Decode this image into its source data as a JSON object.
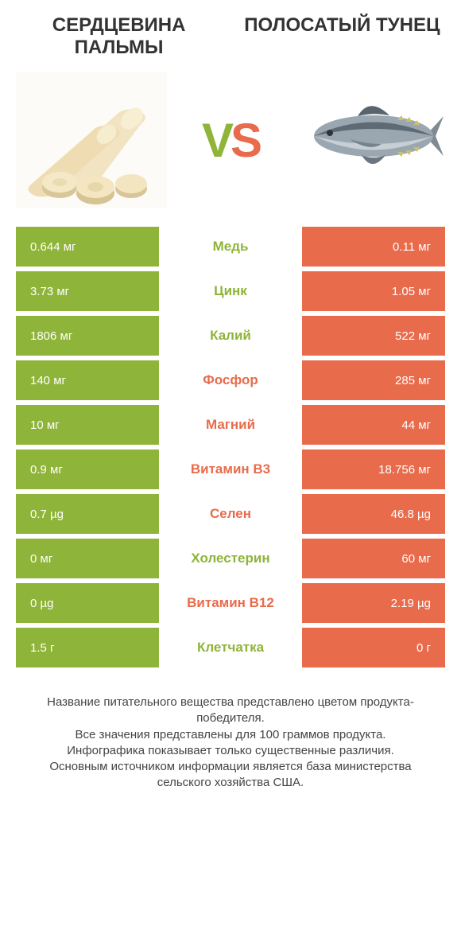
{
  "titles": {
    "left": "СЕРДЦЕВИНА ПАЛЬМЫ",
    "right": "ПОЛОСАТЫЙ ТУНЕЦ"
  },
  "vs": {
    "v": "V",
    "s": "S"
  },
  "colors": {
    "green": "#8fb43a",
    "orange": "#e86b4c",
    "text": "#333333"
  },
  "rows": [
    {
      "left": "0.644 мг",
      "mid": "Медь",
      "right": "0.11 мг",
      "winner": "left"
    },
    {
      "left": "3.73 мг",
      "mid": "Цинк",
      "right": "1.05 мг",
      "winner": "left"
    },
    {
      "left": "1806 мг",
      "mid": "Калий",
      "right": "522 мг",
      "winner": "left"
    },
    {
      "left": "140 мг",
      "mid": "Фосфор",
      "right": "285 мг",
      "winner": "right"
    },
    {
      "left": "10 мг",
      "mid": "Магний",
      "right": "44 мг",
      "winner": "right"
    },
    {
      "left": "0.9 мг",
      "mid": "Витамин B3",
      "right": "18.756 мг",
      "winner": "right"
    },
    {
      "left": "0.7 µg",
      "mid": "Селен",
      "right": "46.8 µg",
      "winner": "right"
    },
    {
      "left": "0 мг",
      "mid": "Холестерин",
      "right": "60 мг",
      "winner": "left"
    },
    {
      "left": "0 µg",
      "mid": "Витамин B12",
      "right": "2.19 µg",
      "winner": "right"
    },
    {
      "left": "1.5 г",
      "mid": "Клетчатка",
      "right": "0 г",
      "winner": "left"
    }
  ],
  "footnote": {
    "l1": "Название питательного вещества представлено цветом продукта-победителя.",
    "l2": "Все значения представлены для 100 граммов продукта.",
    "l3": "Инфографика показывает только существенные различия.",
    "l4": "Основным источником информации является база министерства сельского хозяйства США."
  }
}
